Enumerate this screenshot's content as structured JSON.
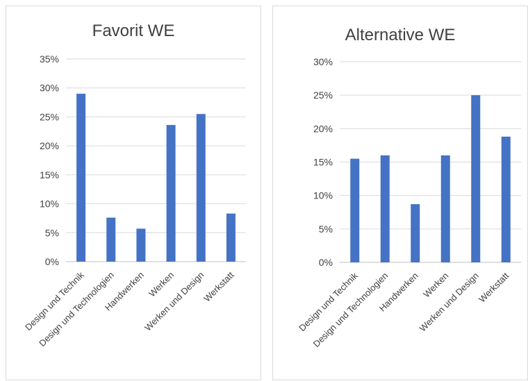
{
  "chart_data": [
    {
      "type": "bar",
      "title": "Favorit WE",
      "categories": [
        "Design und Technik",
        "Design und Technologien",
        "Handwerken",
        "Werken",
        "Werken und Design",
        "Werkstatt"
      ],
      "values": [
        0.29,
        0.076,
        0.057,
        0.236,
        0.255,
        0.083
      ],
      "ylim": [
        0,
        0.35
      ],
      "yticks": [
        "0%",
        "5%",
        "10%",
        "15%",
        "20%",
        "25%",
        "30%",
        "35%"
      ],
      "xlabel": "",
      "ylabel": "",
      "grid": true,
      "bar_color": "#4472c4"
    },
    {
      "type": "bar",
      "title": "Alternative WE",
      "categories": [
        "Design und Technik",
        "Design und Technologien",
        "Handwerken",
        "Werken",
        "Werken und Design",
        "Werkstatt"
      ],
      "values": [
        0.155,
        0.16,
        0.087,
        0.16,
        0.25,
        0.188
      ],
      "ylim": [
        0,
        0.3
      ],
      "yticks": [
        "0%",
        "5%",
        "10%",
        "15%",
        "20%",
        "25%",
        "30%"
      ],
      "xlabel": "",
      "ylabel": "",
      "grid": true,
      "bar_color": "#4472c4"
    }
  ]
}
